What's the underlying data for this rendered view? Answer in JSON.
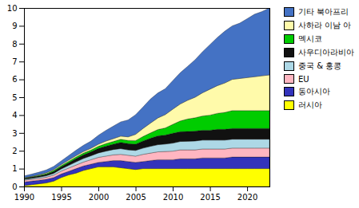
{
  "chart_data": {
    "type": "area",
    "stacked": true,
    "grid": false,
    "legend": "upper right",
    "x": [
      1990,
      1991,
      1992,
      1993,
      1994,
      1995,
      1996,
      1997,
      1998,
      1999,
      2000,
      2001,
      2002,
      2003,
      2004,
      2005,
      2006,
      2007,
      2008,
      2009,
      2010,
      2011,
      2012,
      2013,
      2014,
      2015,
      2016,
      2017,
      2018,
      2019,
      2020,
      2021,
      2022,
      2023
    ],
    "series": [
      {
        "name": "러시아",
        "color": "#FFFF00",
        "values": [
          0.05,
          0.1,
          0.15,
          0.2,
          0.3,
          0.5,
          0.65,
          0.75,
          0.9,
          1.0,
          1.1,
          1.1,
          1.1,
          1.05,
          1.0,
          0.95,
          1.0,
          1.0,
          1.0,
          1.0,
          1.0,
          1.0,
          1.0,
          1.0,
          1.0,
          1.0,
          1.0,
          1.0,
          1.0,
          1.0,
          1.0,
          1.0,
          1.0,
          1.0
        ]
      },
      {
        "name": "동아시아",
        "color": "#3333BB",
        "values": [
          0.2,
          0.2,
          0.2,
          0.2,
          0.2,
          0.2,
          0.2,
          0.25,
          0.25,
          0.25,
          0.25,
          0.3,
          0.35,
          0.4,
          0.4,
          0.4,
          0.4,
          0.45,
          0.5,
          0.5,
          0.5,
          0.55,
          0.55,
          0.55,
          0.6,
          0.6,
          0.6,
          0.6,
          0.65,
          0.65,
          0.65,
          0.65,
          0.65,
          0.65
        ]
      },
      {
        "name": "EU",
        "color": "#FFB6C1",
        "values": [
          0.1,
          0.1,
          0.1,
          0.12,
          0.14,
          0.16,
          0.18,
          0.2,
          0.22,
          0.25,
          0.28,
          0.3,
          0.32,
          0.35,
          0.35,
          0.35,
          0.4,
          0.42,
          0.44,
          0.46,
          0.48,
          0.5,
          0.5,
          0.5,
          0.5,
          0.5,
          0.5,
          0.5,
          0.5,
          0.5,
          0.5,
          0.5,
          0.5,
          0.5
        ]
      },
      {
        "name": "중국 & 홍콩",
        "color": "#ADD8E6",
        "values": [
          0.05,
          0.06,
          0.07,
          0.08,
          0.1,
          0.12,
          0.15,
          0.18,
          0.2,
          0.22,
          0.25,
          0.28,
          0.3,
          0.32,
          0.3,
          0.32,
          0.35,
          0.38,
          0.4,
          0.42,
          0.45,
          0.47,
          0.48,
          0.5,
          0.5,
          0.5,
          0.5,
          0.5,
          0.5,
          0.5,
          0.5,
          0.5,
          0.5,
          0.5
        ]
      },
      {
        "name": "사우디아라비아",
        "color": "#111111",
        "values": [
          0.05,
          0.06,
          0.07,
          0.08,
          0.1,
          0.12,
          0.15,
          0.18,
          0.2,
          0.22,
          0.25,
          0.28,
          0.3,
          0.35,
          0.35,
          0.35,
          0.4,
          0.45,
          0.5,
          0.5,
          0.55,
          0.55,
          0.55,
          0.55,
          0.55,
          0.55,
          0.6,
          0.6,
          0.6,
          0.6,
          0.6,
          0.6,
          0.6,
          0.6
        ]
      },
      {
        "name": "멕시코",
        "color": "#00CC00",
        "values": [
          0.02,
          0.03,
          0.04,
          0.05,
          0.06,
          0.07,
          0.08,
          0.09,
          0.1,
          0.1,
          0.12,
          0.14,
          0.15,
          0.17,
          0.18,
          0.2,
          0.25,
          0.3,
          0.35,
          0.4,
          0.5,
          0.6,
          0.7,
          0.75,
          0.8,
          0.85,
          0.9,
          0.95,
          1.0,
          1.0,
          1.0,
          1.0,
          1.0,
          1.0
        ]
      },
      {
        "name": "사하라 이남 아",
        "color": "#FFFAAA",
        "values": [
          0.02,
          0.02,
          0.03,
          0.04,
          0.05,
          0.06,
          0.07,
          0.08,
          0.09,
          0.1,
          0.12,
          0.14,
          0.16,
          0.18,
          0.2,
          0.35,
          0.45,
          0.55,
          0.65,
          0.75,
          0.85,
          0.95,
          1.05,
          1.15,
          1.3,
          1.45,
          1.55,
          1.65,
          1.75,
          1.8,
          1.85,
          1.9,
          1.95,
          2.0
        ]
      },
      {
        "name": "기타 북아프리",
        "color": "#4472C4",
        "values": [
          0.1,
          0.12,
          0.14,
          0.16,
          0.18,
          0.2,
          0.25,
          0.3,
          0.35,
          0.4,
          0.5,
          0.6,
          0.7,
          0.8,
          0.95,
          1.1,
          1.2,
          1.35,
          1.4,
          1.45,
          1.6,
          1.75,
          1.9,
          2.1,
          2.3,
          2.5,
          2.7,
          2.9,
          3.0,
          3.1,
          3.3,
          3.5,
          3.6,
          3.75
        ]
      }
    ],
    "xlim": [
      1990,
      2023
    ],
    "ylim": [
      0,
      10
    ],
    "xticks": [
      1990,
      1995,
      2000,
      2005,
      2010,
      2015,
      2020
    ],
    "yticks": [
      0,
      1,
      2,
      3,
      4,
      5,
      6,
      7,
      8,
      9,
      10
    ]
  }
}
